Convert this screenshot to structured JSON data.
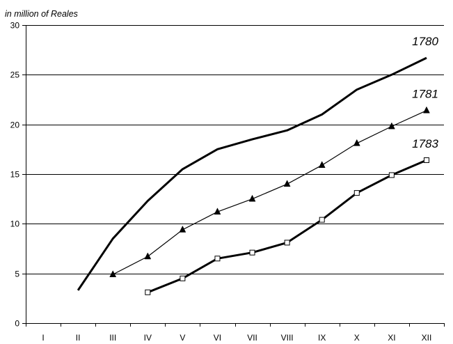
{
  "chart_data": {
    "type": "line",
    "title": "",
    "unit_label": "in million of Reales",
    "xlabel": "",
    "ylabel": "",
    "categories": [
      "I",
      "II",
      "III",
      "IV",
      "V",
      "VI",
      "VII",
      "VIII",
      "IX",
      "X",
      "XI",
      "XII"
    ],
    "ylim": [
      0,
      30
    ],
    "yticks": [
      0,
      5,
      10,
      15,
      20,
      25,
      30
    ],
    "grid": "horizontal",
    "legend": "inline labels at line ends",
    "series": [
      {
        "name": "1780",
        "marker": "none",
        "line": "thick",
        "color": "#000000",
        "values": [
          null,
          3.3,
          8.5,
          12.3,
          15.5,
          17.5,
          18.5,
          19.4,
          21.0,
          23.5,
          25.0,
          26.7
        ]
      },
      {
        "name": "1781",
        "marker": "filled-triangle",
        "line": "thin",
        "color": "#000000",
        "values": [
          null,
          null,
          4.9,
          6.7,
          9.4,
          11.2,
          12.5,
          14.0,
          15.9,
          18.1,
          19.8,
          21.4
        ]
      },
      {
        "name": "1783",
        "marker": "open-square",
        "line": "thick",
        "color": "#000000",
        "values": [
          null,
          null,
          null,
          3.1,
          4.5,
          6.5,
          7.1,
          8.1,
          10.4,
          13.1,
          14.9,
          16.4
        ]
      }
    ]
  }
}
